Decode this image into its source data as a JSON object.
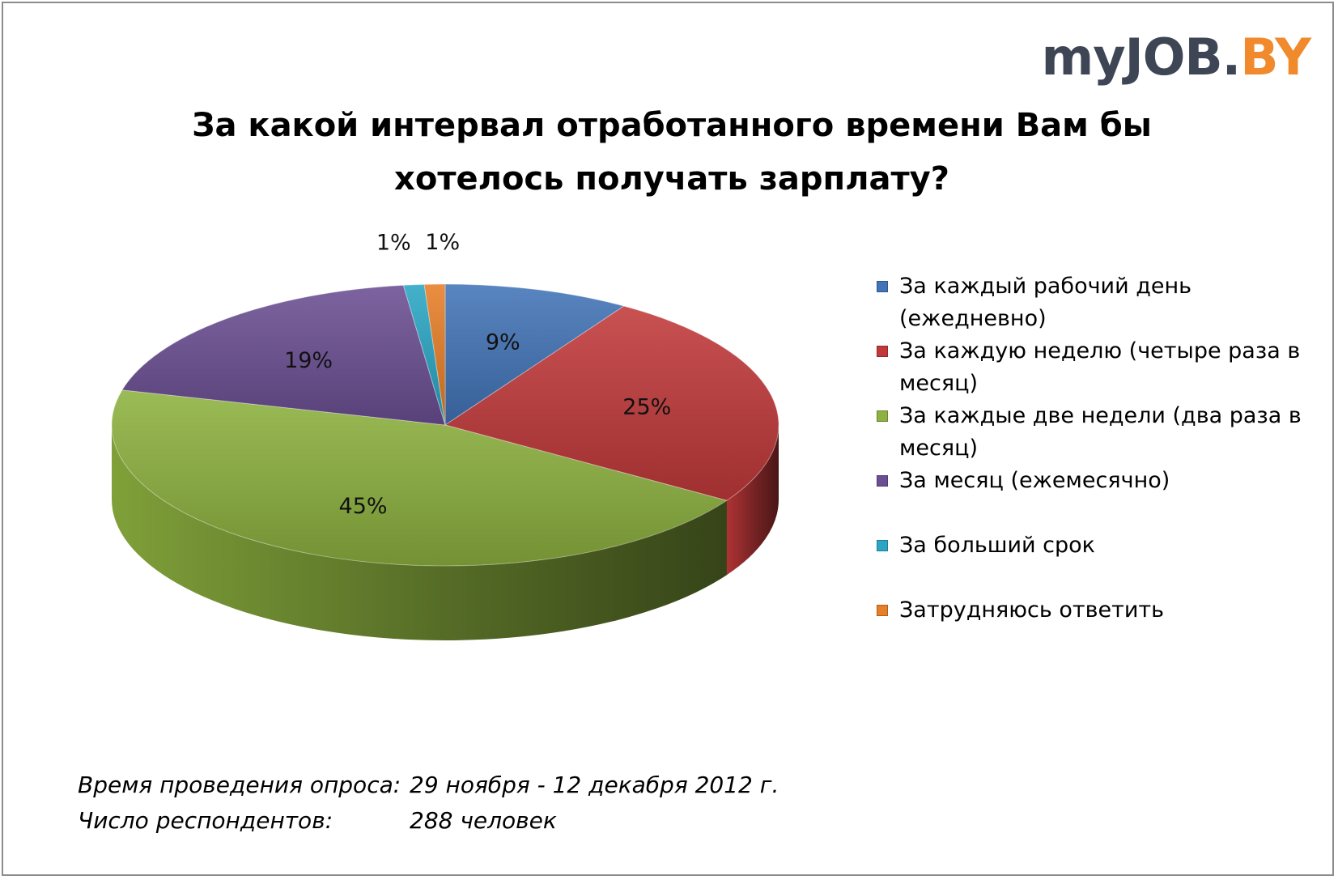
{
  "logo": {
    "text_main": "myJOB.",
    "text_accent": "BY"
  },
  "colors": {
    "accent": "#f08a2c",
    "logo_dark": "#3e4655",
    "series": [
      "#4274b7",
      "#c2393a",
      "#8db23f",
      "#6b4f93",
      "#2aa6c4",
      "#e77f27"
    ]
  },
  "chart_data": {
    "type": "pie",
    "title": "За какой интервал отработанного времени Вам бы хотелось получать зарплату?",
    "categories": [
      "За каждый рабочий день (ежедневно)",
      "За каждую неделю (четыре раза в месяц)",
      "За каждые две недели (два раза в месяц)",
      "За месяц (ежемесячно)",
      "За больший срок",
      "Затрудняюсь ответить"
    ],
    "values": [
      9,
      25,
      45,
      19,
      1,
      1
    ],
    "data_labels": [
      "9%",
      "25%",
      "45%",
      "19%",
      "1%",
      "1%"
    ],
    "unit": "%",
    "legend": "right",
    "style": "3d"
  },
  "footer": {
    "period_label": "Время проведения опроса:",
    "period_value": "29 ноября - 12 декабря 2012 г.",
    "respondents_label": "Число респондентов:",
    "respondents_value": "288 человек"
  }
}
